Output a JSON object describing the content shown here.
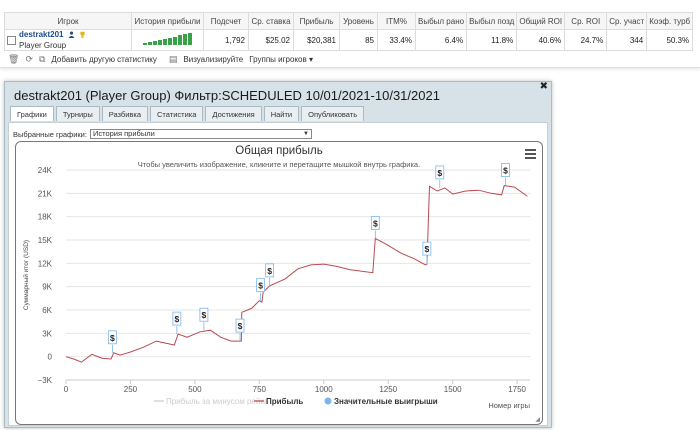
{
  "table": {
    "headers": [
      "Игрок",
      "История прибыли",
      "Подсчет",
      "Ср. ставка",
      "Прибыль",
      "Уровень",
      "ITM%",
      "Выбыл рано",
      "Выбыл позд",
      "Общий ROI",
      "Ср. ROI",
      "Ср. участ",
      "Коэф. турб"
    ],
    "row": {
      "player": "destrakt201",
      "group": "Player Group",
      "count": "1,792",
      "avg_stake": "$25.02",
      "profit": "$20,381",
      "level": "85",
      "itm": "33.4%",
      "early": "6.4%",
      "late": "11.8%",
      "total_roi": "40.6%",
      "avg_roi": "24.7%",
      "avg_field": "344",
      "turbo": "50.3%"
    }
  },
  "toolbar": {
    "add_stats": "Добавить другую статистику",
    "visualize": "Визуализируйте",
    "player_groups": "Группы игроков ▾"
  },
  "window": {
    "title": "destrakt201 (Player Group) Фильтр:SCHEDULED 10/01/2021-10/31/2021",
    "tabs": [
      "Графики",
      "Турниры",
      "Разбивка",
      "Статистика",
      "Достижения",
      "Найти",
      "Опубликовать"
    ],
    "active_tab": 0,
    "select_label": "Выбранные графики:",
    "select_value": "История прибыли"
  },
  "chart_data": {
    "type": "line",
    "title": "Общая прибыль",
    "subtitle": "Чтобы увеличить изображение, кликните и перетащите мышкой внутрь графика.",
    "ylabel": "Суммарный итог (USD)",
    "xlabel": "Номер игры",
    "xlim": [
      0,
      1800
    ],
    "ylim": [
      -3000,
      24000
    ],
    "xticks": [
      0,
      250,
      500,
      750,
      1000,
      1250,
      1500,
      1750
    ],
    "yticks": [
      -3000,
      0,
      3000,
      6000,
      9000,
      12000,
      15000,
      18000,
      21000,
      24000
    ],
    "ytick_labels": [
      "−3K",
      "0",
      "3K",
      "6K",
      "9K",
      "12K",
      "15K",
      "18K",
      "21K",
      "24K"
    ],
    "legend": [
      "Прибыль за минусом рейка",
      "Прибыль",
      "Значительные выигрыши"
    ],
    "legend_colors": [
      "#cccccc",
      "#b84a52",
      "#7cb5ec"
    ],
    "series": [
      {
        "name": "Прибыль",
        "color": "#b84a52",
        "points": [
          [
            0,
            0
          ],
          [
            30,
            -300
          ],
          [
            60,
            -700
          ],
          [
            100,
            300
          ],
          [
            140,
            -200
          ],
          [
            175,
            -300
          ],
          [
            185,
            500
          ],
          [
            210,
            200
          ],
          [
            250,
            600
          ],
          [
            300,
            1200
          ],
          [
            350,
            2000
          ],
          [
            420,
            1500
          ],
          [
            435,
            2900
          ],
          [
            470,
            2500
          ],
          [
            520,
            3200
          ],
          [
            560,
            3400
          ],
          [
            600,
            2500
          ],
          [
            640,
            2000
          ],
          [
            680,
            2000
          ],
          [
            682,
            5700
          ],
          [
            720,
            6200
          ],
          [
            750,
            7200
          ],
          [
            760,
            7000
          ],
          [
            765,
            8300
          ],
          [
            790,
            9100
          ],
          [
            850,
            10000
          ],
          [
            900,
            11300
          ],
          [
            950,
            11800
          ],
          [
            1000,
            11900
          ],
          [
            1050,
            11600
          ],
          [
            1100,
            11200
          ],
          [
            1190,
            10800
          ],
          [
            1200,
            15200
          ],
          [
            1250,
            14300
          ],
          [
            1300,
            13300
          ],
          [
            1350,
            12600
          ],
          [
            1395,
            11800
          ],
          [
            1400,
            11900
          ],
          [
            1410,
            21900
          ],
          [
            1440,
            21300
          ],
          [
            1470,
            21700
          ],
          [
            1500,
            20900
          ],
          [
            1550,
            21300
          ],
          [
            1600,
            21400
          ],
          [
            1650,
            21000
          ],
          [
            1690,
            20800
          ],
          [
            1700,
            22000
          ],
          [
            1740,
            21800
          ],
          [
            1790,
            20600
          ]
        ]
      }
    ],
    "big_wins_x": [
      180,
      430,
      535,
      675,
      755,
      790,
      1200,
      1400,
      1450,
      1705
    ]
  }
}
